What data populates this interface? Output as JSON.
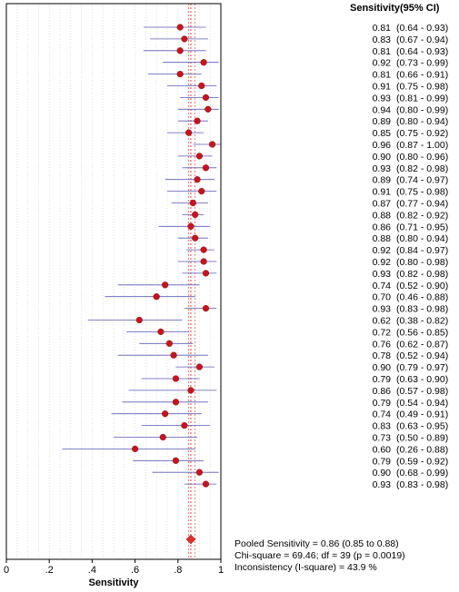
{
  "chart_data": {
    "type": "forest",
    "xlabel": "Sensitivity",
    "column_header": "Sensitivity(95% CI)",
    "xlim": [
      0,
      1
    ],
    "x_ticks": [
      {
        "value": 0,
        "label": "0"
      },
      {
        "value": 0.2,
        "label": ".2"
      },
      {
        "value": 0.4,
        "label": ".4"
      },
      {
        "value": 0.6,
        "label": ".6"
      },
      {
        "value": 0.8,
        "label": ".8"
      },
      {
        "value": 1.0,
        "label": "1"
      }
    ],
    "studies": [
      {
        "est": 0.81,
        "lo": 0.64,
        "hi": 0.93,
        "label": "0.81",
        "ci": "(0.64 - 0.93)"
      },
      {
        "est": 0.83,
        "lo": 0.67,
        "hi": 0.94,
        "label": "0.83",
        "ci": "(0.67 - 0.94)"
      },
      {
        "est": 0.81,
        "lo": 0.64,
        "hi": 0.93,
        "label": "0.81",
        "ci": "(0.64 - 0.93)"
      },
      {
        "est": 0.92,
        "lo": 0.73,
        "hi": 0.99,
        "label": "0.92",
        "ci": "(0.73 - 0.99)"
      },
      {
        "est": 0.81,
        "lo": 0.66,
        "hi": 0.91,
        "label": "0.81",
        "ci": "(0.66 - 0.91)"
      },
      {
        "est": 0.91,
        "lo": 0.75,
        "hi": 0.98,
        "label": "0.91",
        "ci": "(0.75 - 0.98)"
      },
      {
        "est": 0.93,
        "lo": 0.81,
        "hi": 0.99,
        "label": "0.93",
        "ci": "(0.81 - 0.99)"
      },
      {
        "est": 0.94,
        "lo": 0.8,
        "hi": 0.99,
        "label": "0.94",
        "ci": "(0.80 - 0.99)"
      },
      {
        "est": 0.89,
        "lo": 0.8,
        "hi": 0.94,
        "label": "0.89",
        "ci": "(0.80 - 0.94)"
      },
      {
        "est": 0.85,
        "lo": 0.75,
        "hi": 0.92,
        "label": "0.85",
        "ci": "(0.75 - 0.92)"
      },
      {
        "est": 0.96,
        "lo": 0.87,
        "hi": 1.0,
        "label": "0.96",
        "ci": "(0.87 - 1.00)"
      },
      {
        "est": 0.9,
        "lo": 0.8,
        "hi": 0.96,
        "label": "0.90",
        "ci": "(0.80 - 0.96)"
      },
      {
        "est": 0.93,
        "lo": 0.82,
        "hi": 0.98,
        "label": "0.93",
        "ci": "(0.82 - 0.98)"
      },
      {
        "est": 0.89,
        "lo": 0.74,
        "hi": 0.97,
        "label": "0.89",
        "ci": "(0.74 - 0.97)"
      },
      {
        "est": 0.91,
        "lo": 0.75,
        "hi": 0.98,
        "label": "0.91",
        "ci": "(0.75 - 0.98)"
      },
      {
        "est": 0.87,
        "lo": 0.77,
        "hi": 0.94,
        "label": "0.87",
        "ci": "(0.77 - 0.94)"
      },
      {
        "est": 0.88,
        "lo": 0.82,
        "hi": 0.92,
        "label": "0.88",
        "ci": "(0.82 - 0.92)"
      },
      {
        "est": 0.86,
        "lo": 0.71,
        "hi": 0.95,
        "label": "0.86",
        "ci": "(0.71 - 0.95)"
      },
      {
        "est": 0.88,
        "lo": 0.8,
        "hi": 0.94,
        "label": "0.88",
        "ci": "(0.80 - 0.94)"
      },
      {
        "est": 0.92,
        "lo": 0.84,
        "hi": 0.97,
        "label": "0.92",
        "ci": "(0.84 - 0.97)"
      },
      {
        "est": 0.92,
        "lo": 0.8,
        "hi": 0.98,
        "label": "0.92",
        "ci": "(0.80 - 0.98)"
      },
      {
        "est": 0.93,
        "lo": 0.82,
        "hi": 0.98,
        "label": "0.93",
        "ci": "(0.82 - 0.98)"
      },
      {
        "est": 0.74,
        "lo": 0.52,
        "hi": 0.9,
        "label": "0.74",
        "ci": "(0.52 - 0.90)"
      },
      {
        "est": 0.7,
        "lo": 0.46,
        "hi": 0.88,
        "label": "0.70",
        "ci": "(0.46 - 0.88)"
      },
      {
        "est": 0.93,
        "lo": 0.83,
        "hi": 0.98,
        "label": "0.93",
        "ci": "(0.83 - 0.98)"
      },
      {
        "est": 0.62,
        "lo": 0.38,
        "hi": 0.82,
        "label": "0.62",
        "ci": "(0.38 - 0.82)"
      },
      {
        "est": 0.72,
        "lo": 0.56,
        "hi": 0.85,
        "label": "0.72",
        "ci": "(0.56 - 0.85)"
      },
      {
        "est": 0.76,
        "lo": 0.62,
        "hi": 0.87,
        "label": "0.76",
        "ci": "(0.62 - 0.87)"
      },
      {
        "est": 0.78,
        "lo": 0.52,
        "hi": 0.94,
        "label": "0.78",
        "ci": "(0.52 - 0.94)"
      },
      {
        "est": 0.9,
        "lo": 0.79,
        "hi": 0.97,
        "label": "0.90",
        "ci": "(0.79 - 0.97)"
      },
      {
        "est": 0.79,
        "lo": 0.63,
        "hi": 0.9,
        "label": "0.79",
        "ci": "(0.63 - 0.90)"
      },
      {
        "est": 0.86,
        "lo": 0.57,
        "hi": 0.98,
        "label": "0.86",
        "ci": "(0.57 - 0.98)"
      },
      {
        "est": 0.79,
        "lo": 0.54,
        "hi": 0.94,
        "label": "0.79",
        "ci": "(0.54 - 0.94)"
      },
      {
        "est": 0.74,
        "lo": 0.49,
        "hi": 0.91,
        "label": "0.74",
        "ci": "(0.49 - 0.91)"
      },
      {
        "est": 0.83,
        "lo": 0.63,
        "hi": 0.95,
        "label": "0.83",
        "ci": "(0.63 - 0.95)"
      },
      {
        "est": 0.73,
        "lo": 0.5,
        "hi": 0.89,
        "label": "0.73",
        "ci": "(0.50 - 0.89)"
      },
      {
        "est": 0.6,
        "lo": 0.26,
        "hi": 0.88,
        "label": "0.60",
        "ci": "(0.26 - 0.88)"
      },
      {
        "est": 0.79,
        "lo": 0.59,
        "hi": 0.92,
        "label": "0.79",
        "ci": "(0.59 - 0.92)"
      },
      {
        "est": 0.9,
        "lo": 0.68,
        "hi": 0.99,
        "label": "0.90",
        "ci": "(0.68 - 0.99)"
      },
      {
        "est": 0.93,
        "lo": 0.83,
        "hi": 0.98,
        "label": "0.93",
        "ci": "(0.83 - 0.98)"
      }
    ],
    "pooled": {
      "est": 0.86,
      "lo": 0.85,
      "hi": 0.88
    },
    "summary_lines": [
      "Pooled Sensitivity = 0.86 (0.85 to 0.88)",
      "Chi-square = 69.46; df =  39 (p = 0.0019)",
      "Inconsistency (I-square) = 43.9 %"
    ],
    "colors": {
      "point": "#c8141e",
      "ci_line": "#5a5ab4",
      "pooled_line": "#e03030",
      "grid": "#cfcfcf"
    }
  }
}
